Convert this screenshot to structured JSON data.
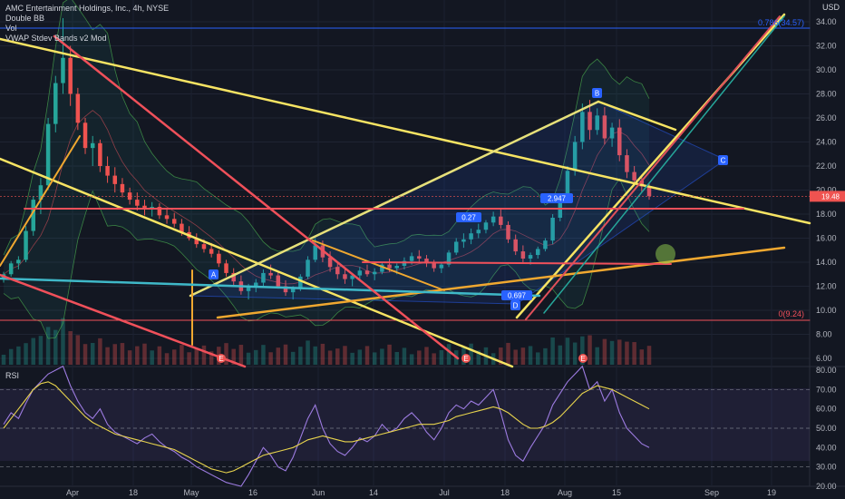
{
  "legend": {
    "title": "AMC Entertainment Holdings, Inc., 4h, NYSE",
    "ind1": "Double BB",
    "ind2": "Vol",
    "ind3": "VWAP Stdev Bands v2 Mod"
  },
  "rsi_label": "RSI",
  "currency": "USD",
  "price_tag": "19.48",
  "fib_top": "0.786(34.57)",
  "fib_bottom": "0(9.24)",
  "pattern_labels": {
    "A": "A",
    "B": "B",
    "C": "C",
    "D": "D"
  },
  "ratio_labels": {
    "r1": "0.27",
    "r2": "2.947",
    "r3": "0.697"
  },
  "earnings": [
    "E",
    "E",
    "E"
  ],
  "colors": {
    "up": "#26a69a",
    "down": "#ef5350",
    "yellow": "#f7e463",
    "orange": "#f0a830",
    "red": "#f0505a",
    "cyan": "#3fb8c8",
    "blue": "#2962ff",
    "rsi": "#9c7be0",
    "rsi_ma": "#e8d44d"
  },
  "chart_data": {
    "type": "candlestick",
    "y_axis": {
      "ticks": [
        "34.00",
        "32.00",
        "30.00",
        "28.00",
        "26.00",
        "24.00",
        "22.00",
        "20.00",
        "18.00",
        "16.00",
        "14.00",
        "12.00",
        "10.00",
        "8.00",
        "6.00"
      ],
      "range": [
        6,
        35
      ]
    },
    "rsi_axis": {
      "ticks": [
        "80.00",
        "70.00",
        "60.00",
        "50.00",
        "40.00",
        "30.00",
        "20.00"
      ],
      "range": [
        20,
        80
      ]
    },
    "x_axis": {
      "ticks": [
        "Apr",
        "18",
        "May",
        "16",
        "Jun",
        "14",
        "Jul",
        "18",
        "Aug",
        "15",
        "Sep",
        "19"
      ]
    },
    "price_series": [
      [
        12.6,
        13.2,
        12.3,
        13.0
      ],
      [
        13.0,
        14.1,
        12.8,
        13.9
      ],
      [
        13.9,
        14.5,
        13.4,
        14.2
      ],
      [
        14.2,
        17.0,
        14.0,
        16.6
      ],
      [
        16.6,
        19.5,
        16.2,
        19.2
      ],
      [
        19.2,
        21.0,
        18.0,
        20.4
      ],
      [
        20.4,
        26.0,
        20.0,
        25.5
      ],
      [
        25.5,
        29.5,
        24.8,
        28.9
      ],
      [
        28.9,
        34.3,
        28.0,
        31.0
      ],
      [
        31.0,
        32.0,
        27.0,
        28.0
      ],
      [
        28.0,
        28.5,
        25.0,
        25.6
      ],
      [
        25.6,
        26.0,
        23.0,
        23.5
      ],
      [
        23.5,
        24.5,
        22.0,
        23.9
      ],
      [
        23.9,
        24.2,
        21.5,
        22.0
      ],
      [
        22.0,
        22.8,
        20.6,
        21.2
      ],
      [
        21.2,
        21.9,
        19.8,
        20.5
      ],
      [
        20.5,
        21.0,
        19.4,
        19.8
      ],
      [
        19.8,
        20.2,
        18.8,
        19.2
      ],
      [
        19.2,
        19.8,
        18.3,
        18.7
      ],
      [
        18.7,
        19.2,
        17.9,
        18.4
      ],
      [
        18.4,
        19.0,
        17.8,
        18.6
      ],
      [
        18.6,
        18.9,
        17.6,
        17.9
      ],
      [
        17.9,
        18.4,
        17.2,
        17.6
      ],
      [
        17.6,
        18.1,
        16.9,
        17.2
      ],
      [
        17.2,
        17.6,
        16.2,
        16.5
      ],
      [
        16.5,
        17.0,
        15.8,
        16.0
      ],
      [
        16.0,
        16.4,
        15.2,
        15.5
      ],
      [
        15.5,
        15.9,
        14.8,
        15.1
      ],
      [
        15.1,
        15.6,
        14.4,
        14.7
      ],
      [
        14.7,
        15.0,
        13.6,
        13.9
      ],
      [
        13.9,
        14.2,
        12.8,
        13.1
      ],
      [
        13.1,
        13.5,
        12.0,
        12.4
      ],
      [
        12.4,
        12.9,
        11.3,
        11.6
      ],
      [
        11.6,
        12.2,
        10.9,
        11.9
      ],
      [
        11.9,
        12.6,
        11.5,
        12.3
      ],
      [
        12.3,
        13.4,
        12.0,
        13.1
      ],
      [
        13.1,
        13.8,
        12.6,
        12.9
      ],
      [
        12.9,
        13.2,
        11.8,
        12.0
      ],
      [
        12.0,
        12.5,
        11.2,
        11.5
      ],
      [
        11.5,
        12.0,
        10.9,
        11.8
      ],
      [
        11.8,
        13.0,
        11.6,
        12.8
      ],
      [
        12.8,
        14.5,
        12.6,
        14.2
      ],
      [
        14.2,
        16.0,
        14.0,
        15.4
      ],
      [
        15.4,
        15.8,
        14.0,
        14.4
      ],
      [
        14.4,
        14.9,
        13.2,
        13.6
      ],
      [
        13.6,
        14.0,
        12.6,
        13.0
      ],
      [
        13.0,
        13.4,
        12.2,
        12.6
      ],
      [
        12.6,
        13.1,
        12.0,
        12.9
      ],
      [
        12.9,
        13.6,
        12.6,
        13.3
      ],
      [
        13.3,
        13.8,
        12.8,
        13.0
      ],
      [
        13.0,
        13.5,
        12.5,
        13.2
      ],
      [
        13.2,
        14.0,
        13.0,
        13.8
      ],
      [
        13.8,
        14.3,
        13.2,
        13.5
      ],
      [
        13.5,
        13.9,
        13.0,
        13.7
      ],
      [
        13.7,
        14.4,
        13.4,
        14.1
      ],
      [
        14.1,
        14.8,
        13.8,
        14.5
      ],
      [
        14.5,
        15.0,
        14.0,
        14.3
      ],
      [
        14.3,
        14.6,
        13.6,
        13.9
      ],
      [
        13.9,
        14.2,
        13.2,
        13.5
      ],
      [
        13.5,
        14.0,
        13.1,
        13.8
      ],
      [
        13.8,
        15.0,
        13.6,
        14.8
      ],
      [
        14.8,
        16.0,
        14.6,
        15.7
      ],
      [
        15.7,
        16.4,
        15.2,
        15.9
      ],
      [
        15.9,
        16.8,
        15.5,
        16.4
      ],
      [
        16.4,
        17.2,
        16.0,
        16.7
      ],
      [
        16.7,
        17.5,
        16.4,
        17.3
      ],
      [
        17.3,
        18.2,
        17.0,
        17.8
      ],
      [
        17.8,
        18.4,
        16.8,
        17.1
      ],
      [
        17.1,
        17.4,
        15.6,
        15.9
      ],
      [
        15.9,
        16.3,
        14.6,
        14.9
      ],
      [
        14.9,
        15.4,
        14.0,
        14.3
      ],
      [
        14.3,
        14.8,
        13.8,
        14.6
      ],
      [
        14.6,
        15.3,
        14.3,
        15.1
      ],
      [
        15.1,
        16.0,
        14.9,
        15.8
      ],
      [
        15.8,
        18.0,
        15.5,
        17.7
      ],
      [
        17.7,
        19.6,
        17.4,
        19.2
      ],
      [
        19.2,
        22.0,
        19.0,
        21.6
      ],
      [
        21.6,
        24.5,
        21.2,
        24.0
      ],
      [
        24.0,
        27.2,
        23.4,
        26.5
      ],
      [
        26.5,
        27.5,
        24.2,
        25.0
      ],
      [
        25.0,
        26.8,
        24.6,
        26.2
      ],
      [
        26.2,
        26.9,
        23.8,
        24.3
      ],
      [
        24.3,
        25.6,
        23.6,
        25.2
      ],
      [
        25.2,
        25.9,
        22.4,
        22.9
      ],
      [
        22.9,
        23.4,
        21.0,
        21.5
      ],
      [
        21.5,
        22.0,
        20.4,
        20.8
      ],
      [
        20.8,
        21.2,
        19.8,
        20.3
      ],
      [
        20.3,
        20.6,
        19.2,
        19.5
      ]
    ],
    "rsi_series": [
      52,
      58,
      55,
      63,
      70,
      74,
      78,
      80,
      82,
      72,
      64,
      58,
      55,
      60,
      52,
      48,
      46,
      44,
      42,
      45,
      47,
      43,
      40,
      38,
      35,
      33,
      30,
      28,
      26,
      24,
      22,
      21,
      20,
      26,
      33,
      40,
      36,
      30,
      28,
      35,
      45,
      55,
      62,
      50,
      42,
      38,
      36,
      40,
      45,
      43,
      46,
      52,
      48,
      50,
      55,
      58,
      54,
      48,
      44,
      50,
      58,
      62,
      60,
      64,
      62,
      66,
      70,
      58,
      44,
      36,
      33,
      40,
      46,
      52,
      62,
      68,
      74,
      78,
      82,
      70,
      74,
      64,
      70,
      58,
      50,
      46,
      42,
      40
    ],
    "rsi_ma_series": [
      50,
      55,
      60,
      65,
      70,
      73,
      74,
      72,
      68,
      64,
      60,
      56,
      53,
      51,
      49,
      47,
      46,
      45,
      44,
      43,
      42,
      41,
      40,
      39,
      37,
      35,
      33,
      31,
      29,
      28,
      27,
      28,
      30,
      32,
      34,
      36,
      37,
      38,
      39,
      40,
      42,
      44,
      45,
      46,
      45,
      44,
      43,
      43,
      44,
      45,
      46,
      47,
      48,
      49,
      50,
      51,
      52,
      52,
      52,
      53,
      54,
      56,
      57,
      58,
      59,
      60,
      61,
      60,
      58,
      55,
      52,
      50,
      50,
      51,
      53,
      56,
      60,
      64,
      68,
      70,
      72,
      71,
      70,
      68,
      66,
      64,
      62,
      60
    ]
  }
}
